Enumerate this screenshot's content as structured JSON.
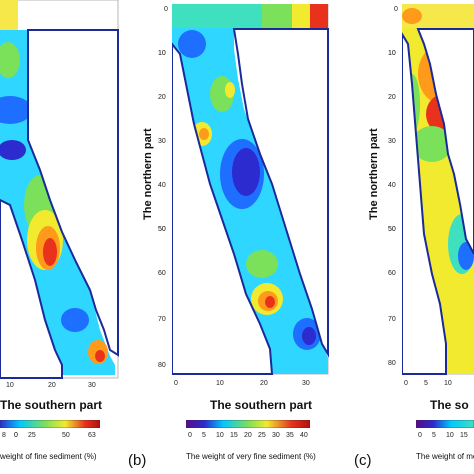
{
  "panels": [
    {
      "id": "a",
      "letter": "",
      "x_axis_label": "The southern part",
      "x_ticks": [
        "10",
        "20",
        "30"
      ],
      "colorbar_ticks": [
        "0",
        "25",
        "50",
        "63"
      ],
      "colorbar_prefix": "8",
      "colorbar_title": "weight of fine sediment (%)"
    },
    {
      "id": "b",
      "letter": "(b)",
      "x_axis_label": "The southern part",
      "y_axis_label": "The northern part",
      "x_ticks": [
        "0",
        "10",
        "20",
        "30"
      ],
      "y_ticks": [
        "0",
        "10",
        "20",
        "30",
        "40",
        "50",
        "60",
        "70",
        "80"
      ],
      "colorbar_ticks": [
        "0",
        "5",
        "10",
        "15",
        "20",
        "25",
        "30",
        "35",
        "40"
      ],
      "colorbar_title": "The weight of very fine sediment (%)"
    },
    {
      "id": "c",
      "letter": "(c)",
      "x_axis_label": "The so",
      "y_axis_label": "The northern part",
      "x_ticks": [
        "0",
        "5",
        "10"
      ],
      "y_ticks": [
        "0",
        "10",
        "20",
        "30",
        "40",
        "50",
        "60",
        "70",
        "80"
      ],
      "colorbar_ticks": [
        "0",
        "5",
        "10",
        "15"
      ],
      "colorbar_title": "The weight of med"
    }
  ],
  "colors": {
    "boundary": "#1a2a9a",
    "scale": [
      "#2b2bd0",
      "#1e6fff",
      "#00c8ff",
      "#3fe0c0",
      "#7be05a",
      "#f2ea2e",
      "#ff9a1a",
      "#e8321c",
      "#b01010"
    ]
  }
}
